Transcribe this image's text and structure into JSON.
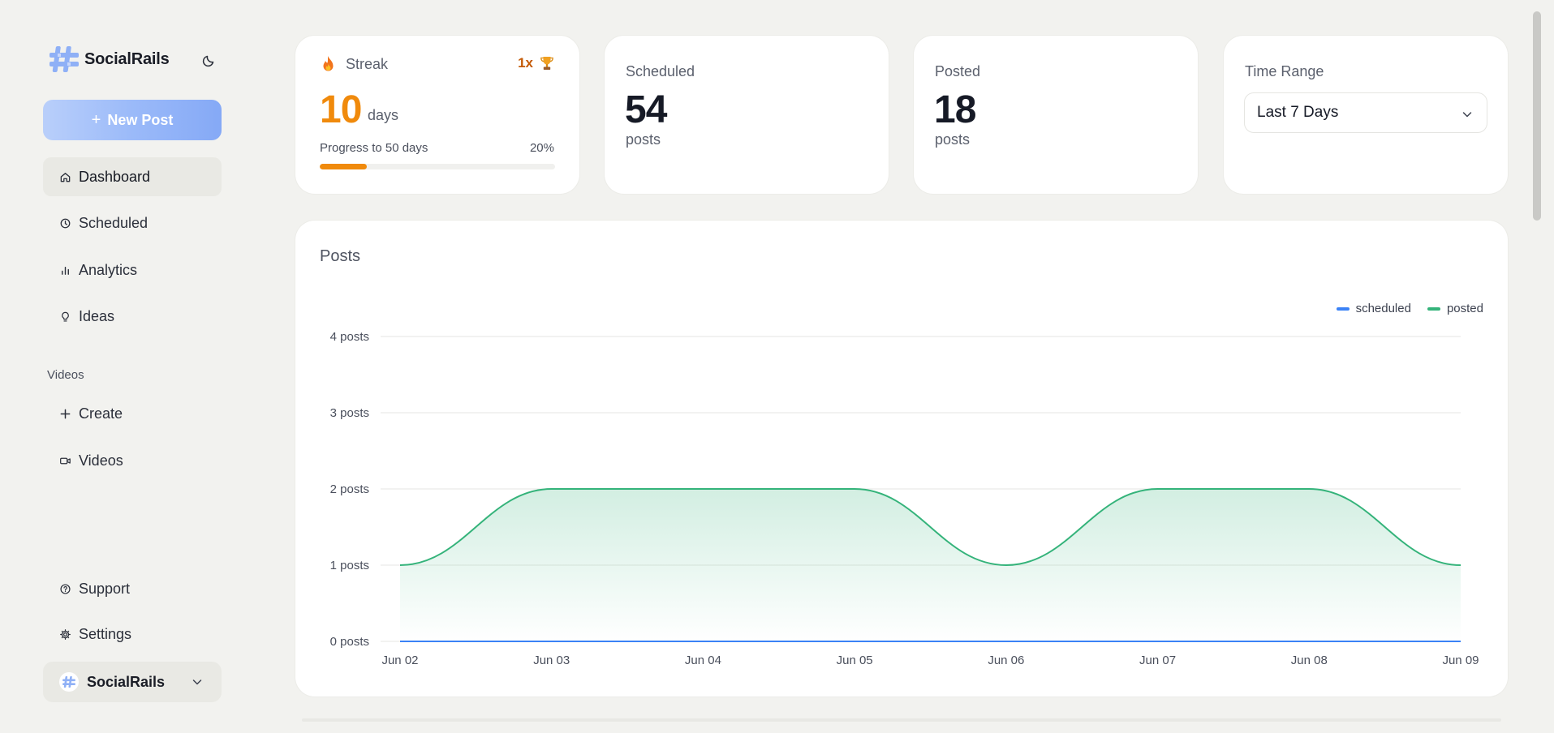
{
  "app": {
    "name": "SocialRails"
  },
  "sidebar": {
    "new_post_label": "New Post",
    "items": [
      {
        "label": "Dashboard",
        "icon": "home-icon",
        "active": true
      },
      {
        "label": "Scheduled",
        "icon": "clock-icon"
      },
      {
        "label": "Analytics",
        "icon": "bar-chart-icon"
      },
      {
        "label": "Ideas",
        "icon": "lightbulb-icon"
      }
    ],
    "videos_section": "Videos",
    "video_items": [
      {
        "label": "Create",
        "icon": "plus-icon"
      },
      {
        "label": "Videos",
        "icon": "video-camera-icon"
      }
    ],
    "bottom_items": [
      {
        "label": "Support",
        "icon": "help-circle-icon"
      },
      {
        "label": "Settings",
        "icon": "gear-icon"
      }
    ],
    "account_name": "SocialRails"
  },
  "streak": {
    "label": "Streak",
    "multiplier": "1x",
    "days_value": "10",
    "days_unit": "days",
    "progress_label": "Progress to 50 days",
    "progress_text": "20%",
    "progress_fraction": 0.2,
    "accent": "#f08a0c"
  },
  "scheduled": {
    "label": "Scheduled",
    "value": "54",
    "unit": "posts"
  },
  "posted": {
    "label": "Posted",
    "value": "18",
    "unit": "posts"
  },
  "time_range": {
    "label": "Time Range",
    "value": "Last 7 Days"
  },
  "posts_chart": {
    "title": "Posts"
  },
  "chart_data": {
    "type": "area",
    "title": "Posts",
    "x": [
      "Jun 02",
      "Jun 03",
      "Jun 04",
      "Jun 05",
      "Jun 06",
      "Jun 07",
      "Jun 08",
      "Jun 09"
    ],
    "series": [
      {
        "name": "scheduled",
        "color": "#3b82f6",
        "values": [
          0,
          0,
          0,
          0,
          0,
          0,
          0,
          0
        ]
      },
      {
        "name": "posted",
        "color": "#34b37a",
        "values": [
          1,
          2,
          2,
          2,
          1,
          2,
          2,
          1
        ]
      }
    ],
    "y_ticks": [
      "0 posts",
      "1 posts",
      "2 posts",
      "3 posts",
      "4 posts"
    ],
    "ylim": [
      0,
      4
    ],
    "grid": true,
    "legend": "top-right"
  }
}
